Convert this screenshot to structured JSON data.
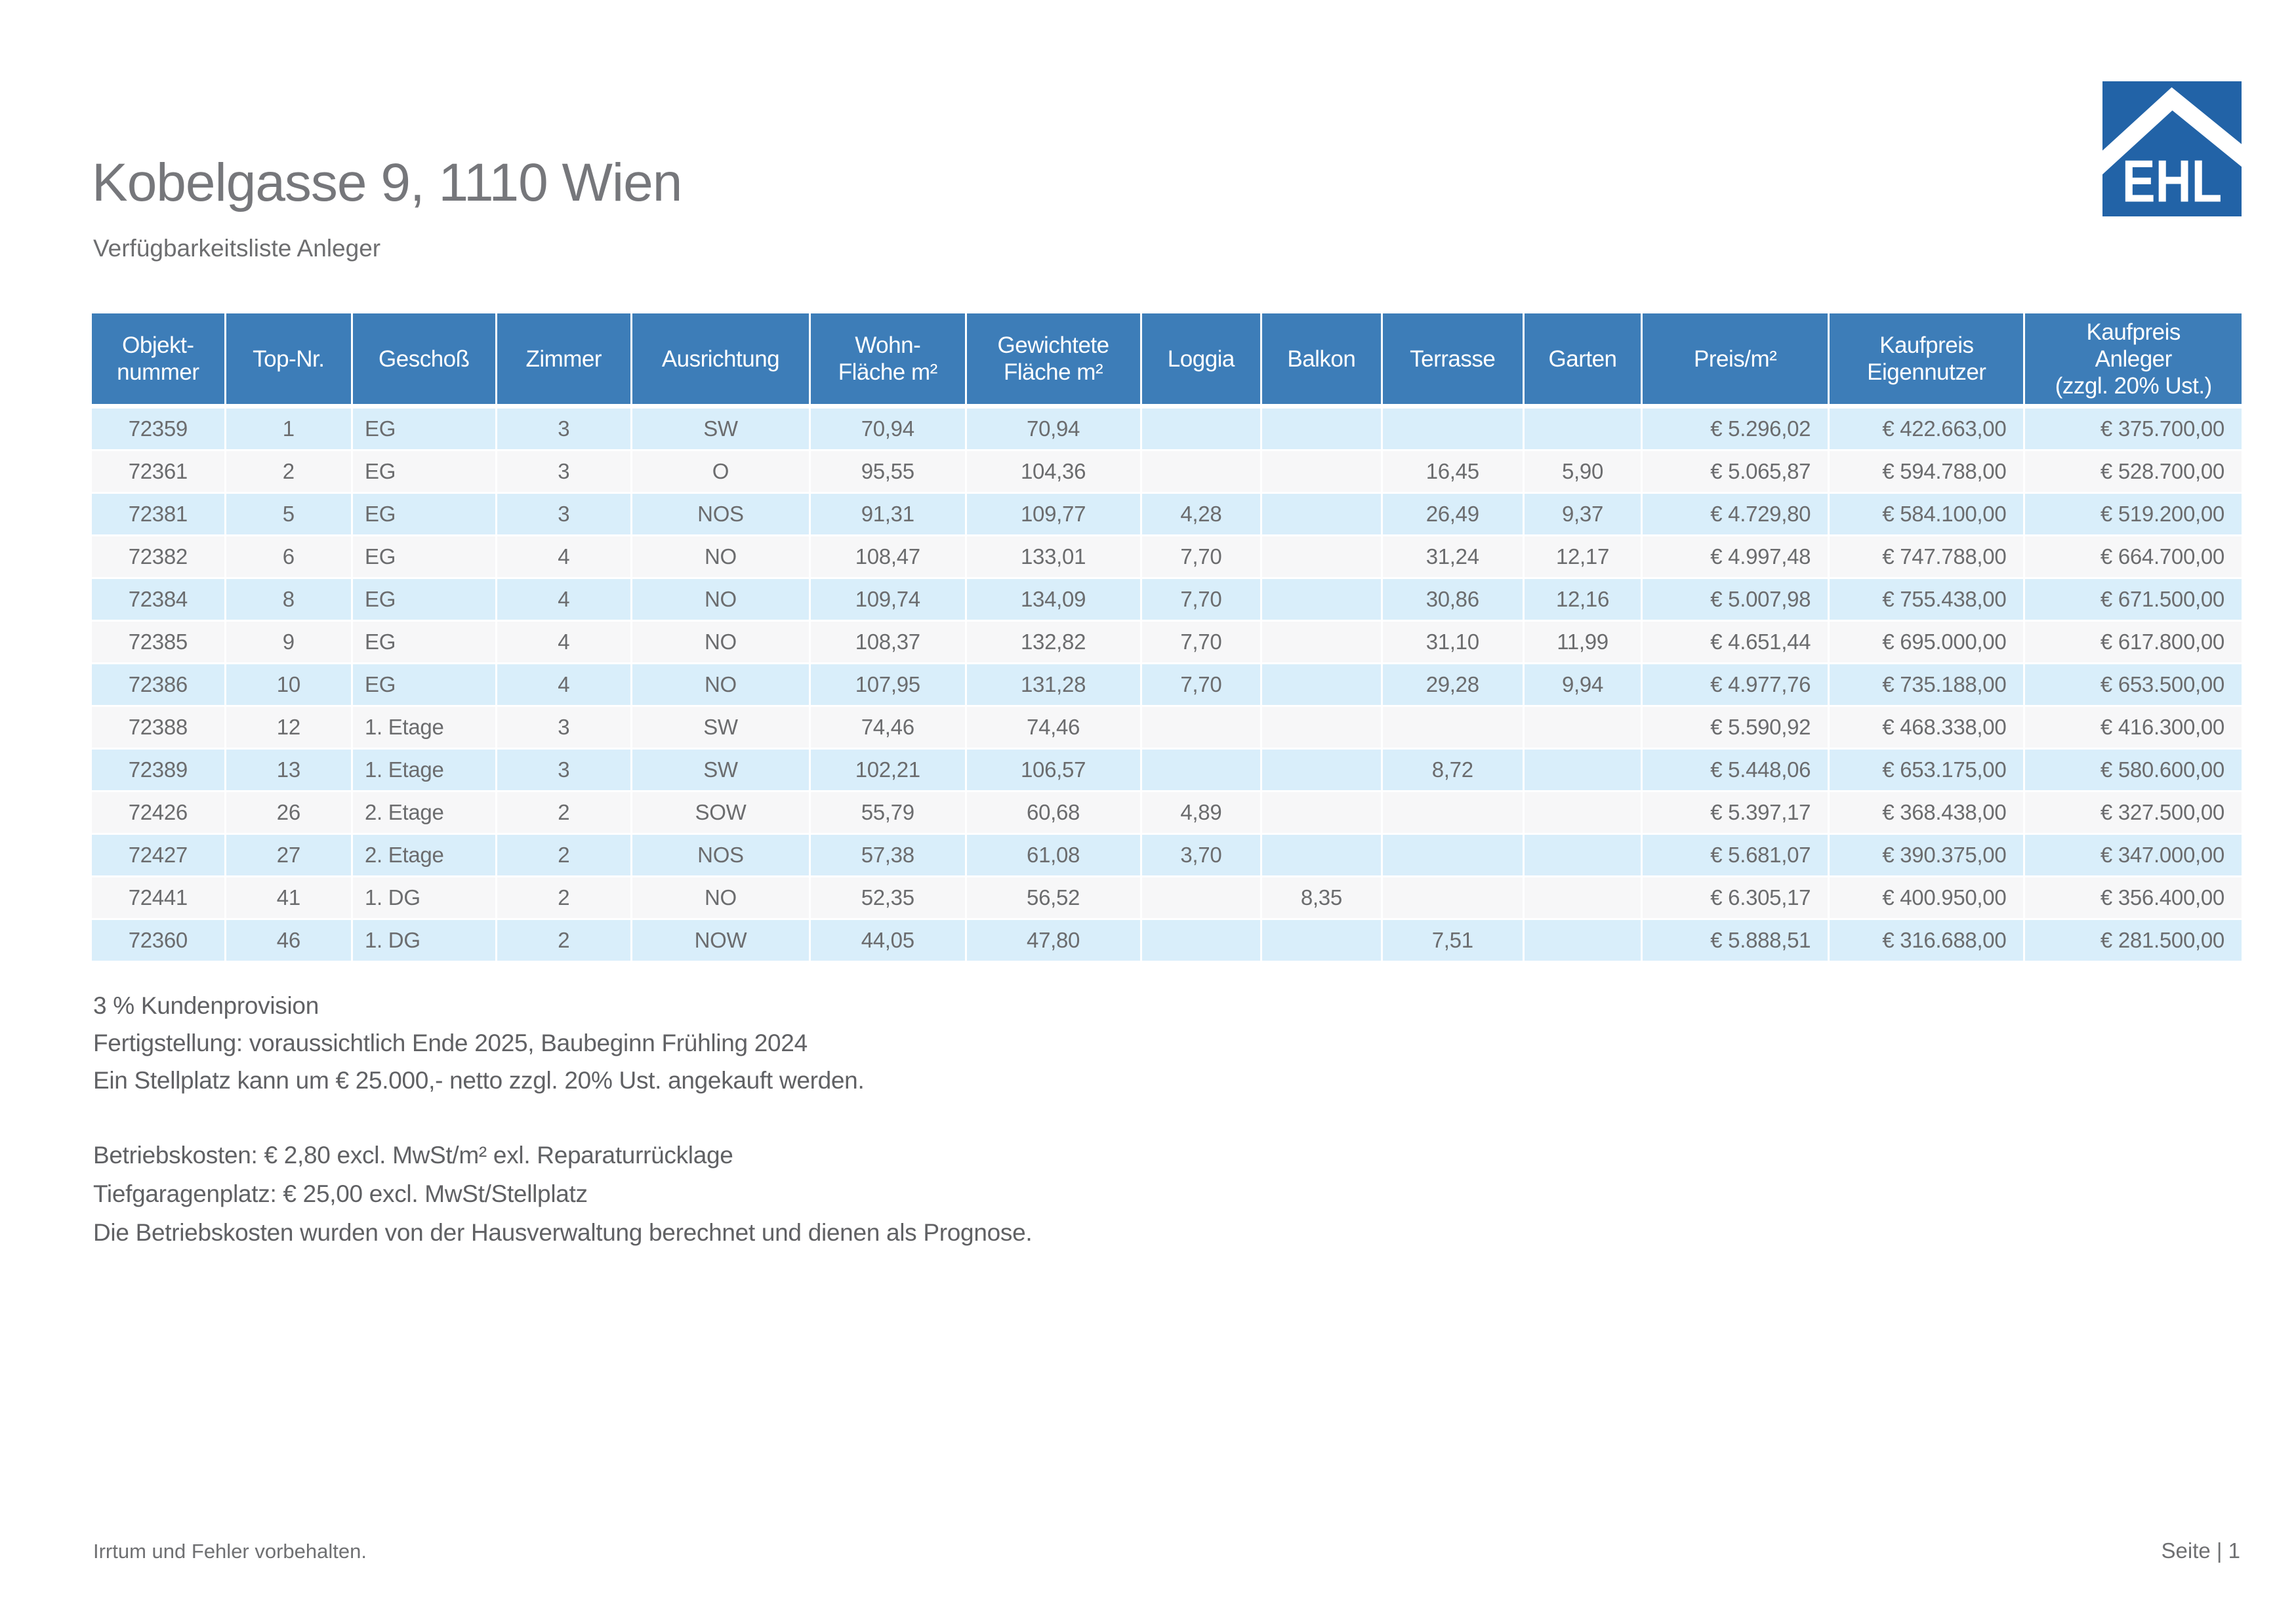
{
  "page": {
    "title": "Kobelgasse 9, 1110 Wien",
    "subtitle": "Verfügbarkeitsliste Anleger",
    "footer_left": "Irrtum und Fehler vorbehalten.",
    "footer_right": "Seite | 1"
  },
  "logo": {
    "text": "EHL",
    "icon": "house-roof-icon",
    "background_color": "#2263a7",
    "foreground_color": "#ffffff"
  },
  "colors": {
    "table_header_bg": "#3d7db8",
    "row_odd_bg": "#d9eefa",
    "row_even_bg": "#f7f7f8",
    "cell_text": "#6b6c6e",
    "title_text": "#76777b",
    "note_text": "#606164"
  },
  "table": {
    "columns": [
      {
        "key": "objektnummer",
        "label": "Objekt-\nnummer",
        "width": 6.2,
        "align": "center"
      },
      {
        "key": "top_nr",
        "label": "Top-Nr.",
        "width": 5.9,
        "align": "center"
      },
      {
        "key": "geschoss",
        "label": "Geschoß",
        "width": 6.7,
        "align": "left"
      },
      {
        "key": "zimmer",
        "label": "Zimmer",
        "width": 6.3,
        "align": "center"
      },
      {
        "key": "ausrichtung",
        "label": "Ausrichtung",
        "width": 8.3,
        "align": "center"
      },
      {
        "key": "wohnflaeche",
        "label": "Wohn-\nFläche m²",
        "width": 7.25,
        "align": "center"
      },
      {
        "key": "gewichtete_flaeche",
        "label": "Gewichtete\nFläche m²",
        "width": 8.15,
        "align": "center"
      },
      {
        "key": "loggia",
        "label": "Loggia",
        "width": 5.6,
        "align": "center"
      },
      {
        "key": "balkon",
        "label": "Balkon",
        "width": 5.6,
        "align": "center"
      },
      {
        "key": "terrasse",
        "label": "Terrasse",
        "width": 6.6,
        "align": "center"
      },
      {
        "key": "garten",
        "label": "Garten",
        "width": 5.5,
        "align": "center"
      },
      {
        "key": "preis_m2",
        "label": "Preis/m²",
        "width": 8.7,
        "align": "right"
      },
      {
        "key": "kaufpreis_eigennutzer",
        "label": "Kaufpreis\nEigennutzer",
        "width": 9.1,
        "align": "right"
      },
      {
        "key": "kaufpreis_anleger",
        "label": "Kaufpreis\nAnleger\n(zzgl. 20% Ust.)",
        "width": 10.1,
        "align": "right"
      }
    ],
    "rows": [
      [
        "72359",
        "1",
        "EG",
        "3",
        "SW",
        "70,94",
        "70,94",
        "",
        "",
        "",
        "",
        "€ 5.296,02",
        "€ 422.663,00",
        "€ 375.700,00"
      ],
      [
        "72361",
        "2",
        "EG",
        "3",
        "O",
        "95,55",
        "104,36",
        "",
        "",
        "16,45",
        "5,90",
        "€ 5.065,87",
        "€ 594.788,00",
        "€ 528.700,00"
      ],
      [
        "72381",
        "5",
        "EG",
        "3",
        "NOS",
        "91,31",
        "109,77",
        "4,28",
        "",
        "26,49",
        "9,37",
        "€ 4.729,80",
        "€ 584.100,00",
        "€ 519.200,00"
      ],
      [
        "72382",
        "6",
        "EG",
        "4",
        "NO",
        "108,47",
        "133,01",
        "7,70",
        "",
        "31,24",
        "12,17",
        "€ 4.997,48",
        "€ 747.788,00",
        "€ 664.700,00"
      ],
      [
        "72384",
        "8",
        "EG",
        "4",
        "NO",
        "109,74",
        "134,09",
        "7,70",
        "",
        "30,86",
        "12,16",
        "€ 5.007,98",
        "€ 755.438,00",
        "€ 671.500,00"
      ],
      [
        "72385",
        "9",
        "EG",
        "4",
        "NO",
        "108,37",
        "132,82",
        "7,70",
        "",
        "31,10",
        "11,99",
        "€ 4.651,44",
        "€ 695.000,00",
        "€ 617.800,00"
      ],
      [
        "72386",
        "10",
        "EG",
        "4",
        "NO",
        "107,95",
        "131,28",
        "7,70",
        "",
        "29,28",
        "9,94",
        "€ 4.977,76",
        "€ 735.188,00",
        "€ 653.500,00"
      ],
      [
        "72388",
        "12",
        "1. Etage",
        "3",
        "SW",
        "74,46",
        "74,46",
        "",
        "",
        "",
        "",
        "€ 5.590,92",
        "€ 468.338,00",
        "€ 416.300,00"
      ],
      [
        "72389",
        "13",
        "1. Etage",
        "3",
        "SW",
        "102,21",
        "106,57",
        "",
        "",
        "8,72",
        "",
        "€ 5.448,06",
        "€ 653.175,00",
        "€ 580.600,00"
      ],
      [
        "72426",
        "26",
        "2. Etage",
        "2",
        "SOW",
        "55,79",
        "60,68",
        "4,89",
        "",
        "",
        "",
        "€ 5.397,17",
        "€ 368.438,00",
        "€ 327.500,00"
      ],
      [
        "72427",
        "27",
        "2. Etage",
        "2",
        "NOS",
        "57,38",
        "61,08",
        "3,70",
        "",
        "",
        "",
        "€ 5.681,07",
        "€ 390.375,00",
        "€ 347.000,00"
      ],
      [
        "72441",
        "41",
        "1. DG",
        "2",
        "NO",
        "52,35",
        "56,52",
        "",
        "8,35",
        "",
        "",
        "€ 6.305,17",
        "€ 400.950,00",
        "€ 356.400,00"
      ],
      [
        "72360",
        "46",
        "1. DG",
        "2",
        "NOW",
        "44,05",
        "47,80",
        "",
        "",
        "7,51",
        "",
        "€ 5.888,51",
        "€ 316.688,00",
        "€ 281.500,00"
      ]
    ]
  },
  "notes_block_1": [
    "3 % Kundenprovision",
    "Fertigstellung: voraussichtlich Ende 2025, Baubeginn Frühling 2024",
    "Ein Stellplatz kann um € 25.000,- netto zzgl. 20% Ust. angekauft werden."
  ],
  "notes_block_2": [
    "Betriebskosten: € 2,80 excl. MwSt/m² exl. Reparaturrücklage",
    "Tiefgaragenplatz: € 25,00 excl. MwSt/Stellplatz",
    "Die Betriebskosten wurden von der Hausverwaltung berechnet und dienen als Prognose."
  ]
}
